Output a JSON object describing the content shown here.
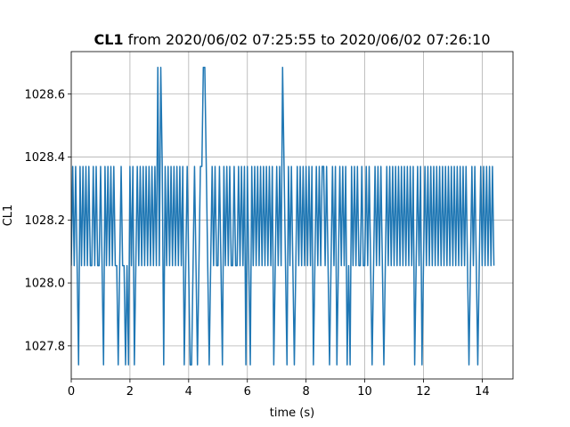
{
  "chart_data": {
    "type": "line",
    "title": {
      "bold": "CL1",
      "rest": " from 2020/06/02 07:25:55 to 2020/06/02 07:26:10"
    },
    "xlabel": "time (s)",
    "ylabel": "CL1",
    "xlim": [
      0,
      15.05
    ],
    "ylim": [
      1027.695,
      1028.735
    ],
    "x_ticks": [
      0,
      2,
      4,
      6,
      8,
      10,
      12,
      14
    ],
    "y_ticks": [
      1027.8,
      1028.0,
      1028.2,
      1028.4,
      1028.6
    ],
    "y_tick_labels": [
      "1027.8",
      "1028.0",
      "1028.2",
      "1028.4",
      "1028.6"
    ],
    "grid": true,
    "series": [
      {
        "color": "#1f77b4",
        "levels": [
          1027.74,
          1028.055,
          1028.37,
          1028.685
        ],
        "x_step": 0.05,
        "level_index": [
          1,
          2,
          1,
          2,
          1,
          0,
          2,
          1,
          2,
          1,
          2,
          1,
          2,
          1,
          1,
          2,
          1,
          2,
          1,
          1,
          2,
          1,
          0,
          2,
          1,
          2,
          1,
          2,
          1,
          2,
          1,
          1,
          0,
          1,
          2,
          1,
          1,
          0,
          1,
          0,
          2,
          1,
          2,
          0,
          1,
          2,
          1,
          2,
          1,
          2,
          1,
          2,
          1,
          2,
          1,
          2,
          1,
          2,
          1,
          3,
          1,
          3,
          2,
          0,
          2,
          1,
          2,
          1,
          2,
          1,
          2,
          1,
          2,
          1,
          2,
          1,
          2,
          0,
          1,
          2,
          1,
          0,
          0,
          1,
          2,
          1,
          0,
          1,
          2,
          2,
          3,
          3,
          2,
          1,
          0,
          1,
          2,
          1,
          2,
          1,
          1,
          2,
          1,
          0,
          2,
          1,
          2,
          1,
          2,
          1,
          1,
          2,
          1,
          1,
          2,
          1,
          2,
          1,
          2,
          0,
          2,
          1,
          0,
          2,
          1,
          2,
          1,
          2,
          1,
          2,
          1,
          2,
          1,
          2,
          1,
          2,
          1,
          2,
          0,
          1,
          2,
          1,
          2,
          1,
          3,
          2,
          1,
          0,
          2,
          1,
          2,
          1,
          0,
          1,
          2,
          1,
          2,
          1,
          2,
          1,
          2,
          1,
          2,
          1,
          2,
          0,
          1,
          2,
          1,
          2,
          1,
          2,
          2,
          1,
          2,
          1,
          0,
          1,
          2,
          1,
          2,
          0,
          1,
          2,
          1,
          2,
          1,
          2,
          0,
          1,
          0,
          2,
          1,
          2,
          1,
          2,
          1,
          1,
          2,
          1,
          1,
          2,
          1,
          2,
          1,
          0,
          1,
          2,
          1,
          2,
          1,
          2,
          1,
          0,
          1,
          2,
          1,
          2,
          1,
          2,
          1,
          2,
          1,
          2,
          1,
          2,
          1,
          2,
          1,
          2,
          1,
          2,
          1,
          2,
          0,
          1,
          2,
          1,
          2,
          0,
          1,
          2,
          1,
          2,
          1,
          2,
          1,
          2,
          1,
          2,
          1,
          2,
          1,
          2,
          1,
          2,
          1,
          2,
          1,
          2,
          1,
          2,
          1,
          2,
          1,
          2,
          1,
          2,
          1,
          2,
          1,
          0,
          1,
          2,
          1,
          2,
          1,
          0,
          1,
          2,
          1,
          2,
          1,
          2,
          1,
          2,
          1,
          2,
          1
        ]
      }
    ]
  }
}
